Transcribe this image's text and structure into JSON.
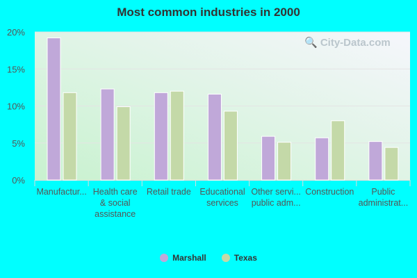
{
  "chart_data": {
    "type": "bar",
    "title": "Most common industries in 2000",
    "categories": [
      [
        "Manufactur..."
      ],
      [
        "Health care",
        "& social",
        "assistance"
      ],
      [
        "Retail trade"
      ],
      [
        "Educational",
        "services"
      ],
      [
        "Other servi...",
        "public adm..."
      ],
      [
        "Construction"
      ],
      [
        "Public",
        "administrat..."
      ]
    ],
    "series": [
      {
        "name": "Marshall",
        "color": "#c0a8d9",
        "values": [
          19.2,
          12.3,
          11.8,
          11.6,
          5.9,
          5.7,
          5.2
        ]
      },
      {
        "name": "Texas",
        "color": "#c4d9a8",
        "values": [
          11.8,
          9.9,
          12.0,
          9.3,
          5.1,
          8.0,
          4.4
        ]
      }
    ],
    "ylim": [
      0,
      20
    ],
    "yticks": [
      "0%",
      "5%",
      "10%",
      "15%",
      "20%"
    ],
    "grid": true,
    "legend": "bottom",
    "watermark": "City-Data.com"
  }
}
